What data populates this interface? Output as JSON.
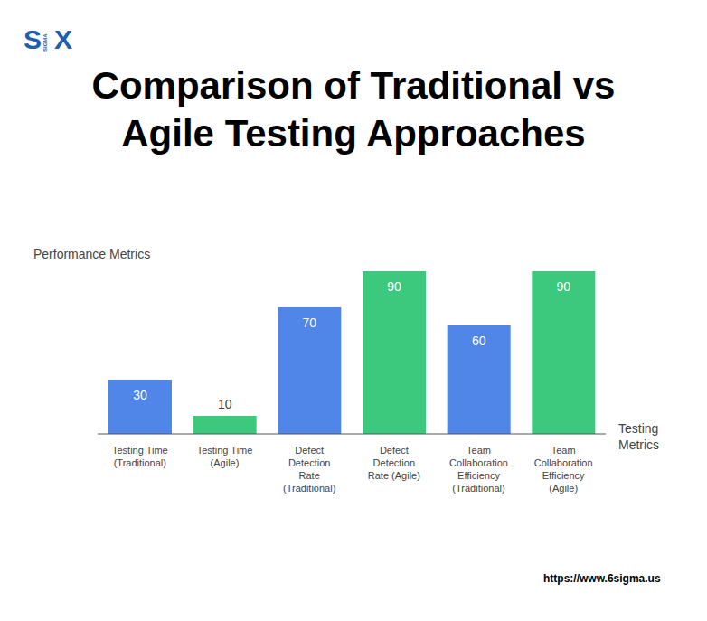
{
  "logo": {
    "left": "S",
    "middle": "SIGMA",
    "right": "X"
  },
  "chart_data": {
    "type": "bar",
    "title": "Comparison of Traditional vs Agile Testing Approaches",
    "y_label": "Performance Metrics",
    "x_label": "Testing Metrics",
    "categories": [
      "Testing Time (Traditional)",
      "Testing Time (Agile)",
      "Defect Detection Rate (Traditional)",
      "Defect Detection Rate (Agile)",
      "Team Collaboration Efficiency (Traditional)",
      "Team Collaboration Efficiency (Agile)"
    ],
    "values": [
      30,
      10,
      70,
      90,
      60,
      90
    ],
    "colors": [
      "#4f86e8",
      "#3cc97e",
      "#4f86e8",
      "#3cc97e",
      "#4f86e8",
      "#3cc97e"
    ],
    "ylim": [
      0,
      92
    ],
    "grid": false,
    "data_labels": true,
    "tick_labels": "x",
    "annotations": [
      "https://www.6sigma.us"
    ]
  }
}
